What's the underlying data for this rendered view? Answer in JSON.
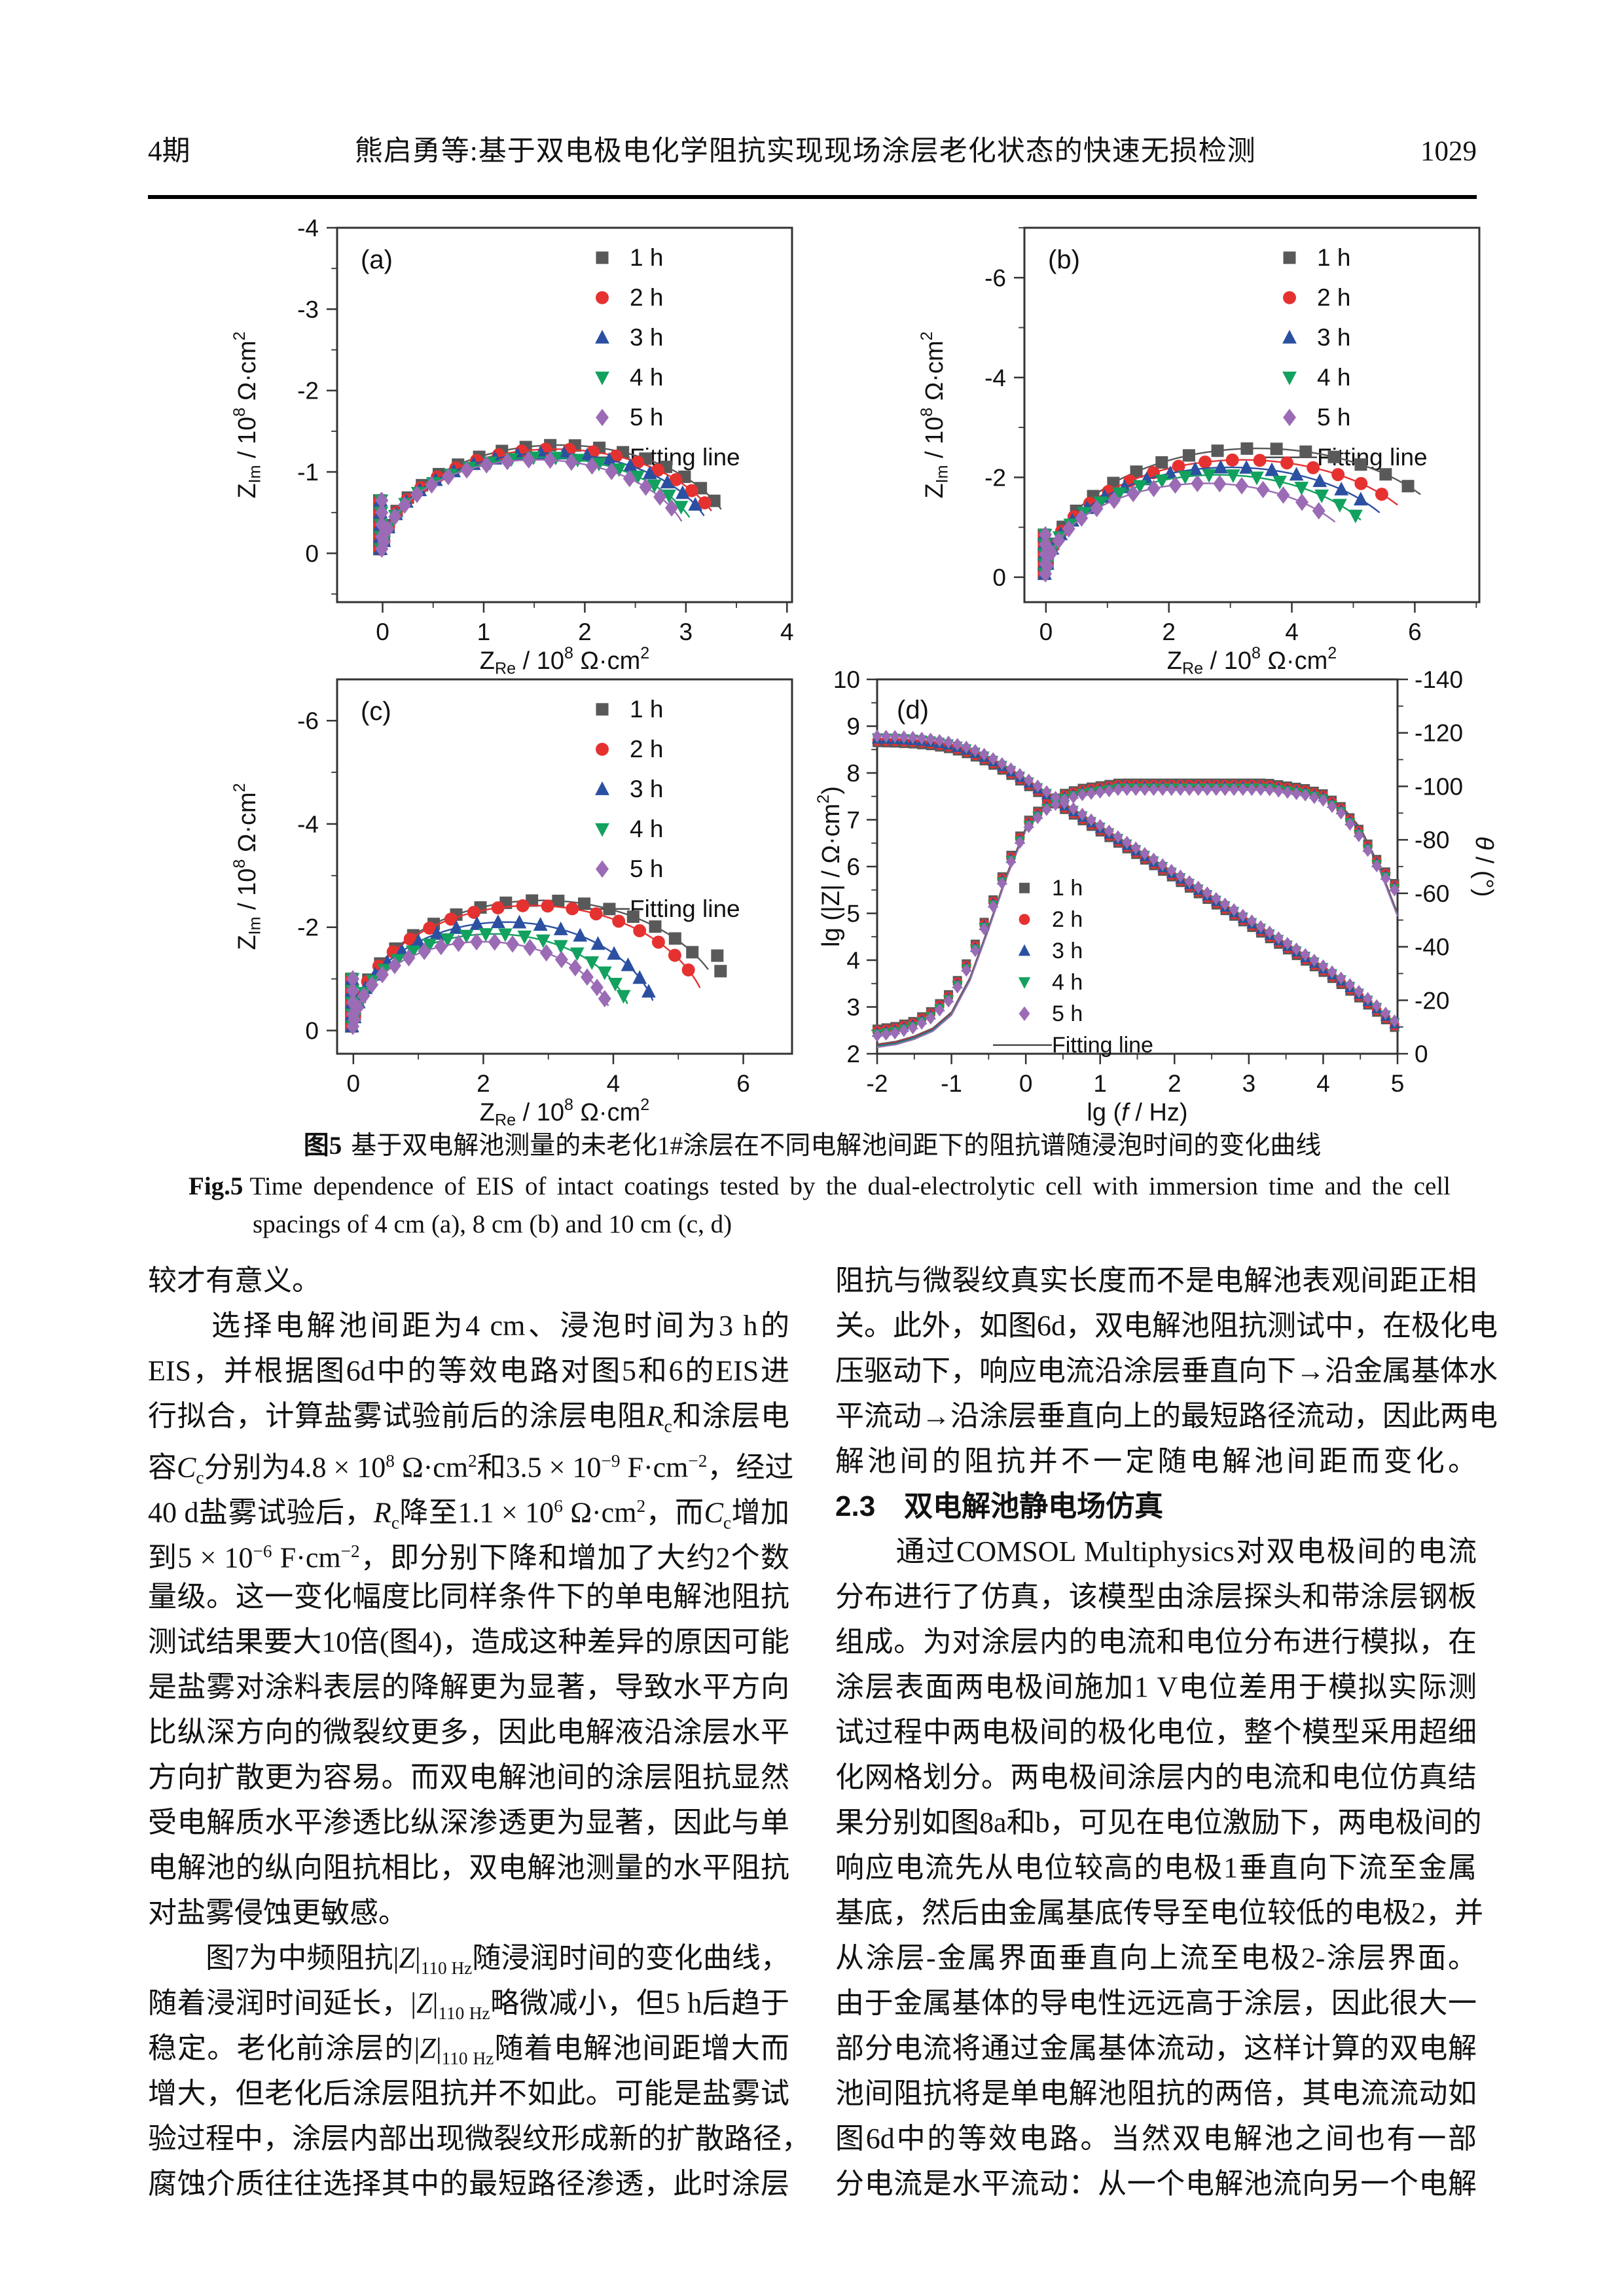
{
  "page": {
    "journal_issue": "4期",
    "running_title": "熊启勇等:基于双电极电化学阻抗实现现场涂层老化状态的快速无损检测",
    "page_number": "1029"
  },
  "colors": {
    "series": [
      "#595959",
      "#e53231",
      "#2b50a1",
      "#12a15e",
      "#9b6bb5"
    ],
    "fit_legend": "#4d4d4d",
    "frame": "#333333"
  },
  "figure": {
    "caption_cn_label": "图5",
    "caption_cn": "基于双电解池测量的未老化1#涂层在不同电解池间距下的阻抗谱随浸泡时间的变化曲线",
    "caption_en_label": "Fig.5",
    "caption_en_line1": "Time dependence of EIS of intact coatings tested by the dual-electrolytic cell with immersion time and the cell",
    "caption_en_line2": "spacings of 4 cm (a), 8 cm (b) and 10 cm (c, d)"
  },
  "chart_data": [
    {
      "type": "scatter",
      "subtype": "nyquist",
      "panel": "(a)",
      "cell_spacing": "4 cm",
      "xlabel": "Z_{Re} / 10^{8} Ω·cm^{2}",
      "ylabel": "Z_{Im} / 10^{8} Ω·cm^{2}",
      "xlim": [
        -0.45,
        4.05
      ],
      "ylim_top": -4.0,
      "ylim_bottom": 0.6,
      "xticks": [
        0,
        1,
        2,
        3,
        4
      ],
      "yticks": [
        -4,
        -3,
        -2,
        -1,
        0
      ],
      "xminor": 0.5,
      "yminor": 0.5,
      "legend": [
        "1 h",
        "2 h",
        "3 h",
        "4 h",
        "5 h",
        "Fitting line"
      ],
      "markers": [
        "square",
        "circle",
        "triangle-up",
        "triangle-down",
        "diamond"
      ],
      "series": [
        {
          "name": "1 h",
          "span": 3.5,
          "peak": 1.33,
          "theta_end": 26
        },
        {
          "name": "2 h",
          "span": 3.4,
          "peak": 1.28,
          "theta_end": 26
        },
        {
          "name": "3 h",
          "span": 3.3,
          "peak": 1.23,
          "theta_end": 25
        },
        {
          "name": "4 h",
          "span": 3.15,
          "peak": 1.18,
          "theta_end": 24
        },
        {
          "name": "5 h",
          "span": 3.05,
          "peak": 1.15,
          "theta_end": 23
        }
      ],
      "tail_depth": 0.65
    },
    {
      "type": "scatter",
      "subtype": "nyquist",
      "panel": "(b)",
      "cell_spacing": "8 cm",
      "xlabel": "Z_{Re} / 10^{8} Ω·cm^{2}",
      "ylabel": "Z_{Im} / 10^{8} Ω·cm^{2}",
      "xlim": [
        -0.35,
        7.05
      ],
      "ylim_top": -7.0,
      "ylim_bottom": 0.5,
      "xticks": [
        0,
        2,
        4,
        6
      ],
      "yticks": [
        -6,
        -4,
        -2,
        0
      ],
      "xminor": 1,
      "yminor": 1,
      "legend": [
        "1 h",
        "2 h",
        "3 h",
        "4 h",
        "5 h",
        "Fitting line"
      ],
      "markers": [
        "square",
        "circle",
        "triangle-up",
        "triangle-down",
        "diamond"
      ],
      "series": [
        {
          "name": "1 h",
          "span": 6.9,
          "peak": 2.58,
          "theta_end": 43
        },
        {
          "name": "2 h",
          "span": 6.4,
          "peak": 2.35,
          "theta_end": 40
        },
        {
          "name": "3 h",
          "span": 6.0,
          "peak": 2.2,
          "theta_end": 38
        },
        {
          "name": "4 h",
          "span": 5.6,
          "peak": 2.05,
          "theta_end": 37
        },
        {
          "name": "5 h",
          "span": 5.2,
          "peak": 1.88,
          "theta_end": 38
        }
      ],
      "tail_depth": 0.85
    },
    {
      "type": "scatter",
      "subtype": "nyquist",
      "panel": "(c)",
      "cell_spacing": "10 cm",
      "xlabel": "Z_{Re} / 10^{8} Ω·cm^{2}",
      "ylabel": "Z_{Im} / 10^{8} Ω·cm^{2}",
      "xlim": [
        -0.25,
        6.75
      ],
      "ylim_top": -6.8,
      "ylim_bottom": 0.45,
      "xticks": [
        0,
        2,
        4,
        6
      ],
      "yticks": [
        -6,
        -4,
        -2,
        0
      ],
      "xminor": 1,
      "yminor": 1,
      "legend": [
        "1 h",
        "2 h",
        "3 h",
        "4 h",
        "5 h",
        "Fitting line"
      ],
      "markers": [
        "square",
        "circle",
        "triangle-up",
        "triangle-down",
        "diamond"
      ],
      "series": [
        {
          "name": "1 h",
          "span": 5.8,
          "peak": 2.52,
          "theta_end": 30,
          "extra_points": [
            [
              5.6,
              -1.45
            ],
            [
              5.65,
              -1.15
            ]
          ]
        },
        {
          "name": "2 h",
          "span": 5.5,
          "peak": 2.42,
          "theta_end": 23
        },
        {
          "name": "3 h",
          "span": 4.7,
          "peak": 2.1,
          "theta_end": 18
        },
        {
          "name": "4 h",
          "span": 4.3,
          "peak": 1.87,
          "theta_end": 19
        },
        {
          "name": "5 h",
          "span": 4.0,
          "peak": 1.72,
          "theta_end": 19
        }
      ],
      "tail_depth": 1.0
    },
    {
      "type": "line",
      "subtype": "bode",
      "panel": "(d)",
      "cell_spacing": "10 cm",
      "xlabel": "lg (~{f} / Hz)",
      "ylabel_left": "lg (|Z| / Ω·cm^{2})",
      "ylabel_right": "~{θ} / (°)",
      "xlim": [
        -2,
        5
      ],
      "xticks": [
        -2,
        -1,
        0,
        1,
        2,
        3,
        4,
        5
      ],
      "xminor": 0.5,
      "ylim_left": [
        2,
        10
      ],
      "yticks_left": [
        2,
        3,
        4,
        5,
        6,
        7,
        8,
        9,
        10
      ],
      "yminor_left": 0.5,
      "ylim_right": [
        0,
        -140
      ],
      "yticks_right": [
        -140,
        -120,
        -100,
        -80,
        -60,
        -40,
        -20,
        0
      ],
      "yminor_right": 10,
      "legend": [
        "1 h",
        "2 h",
        "3 h",
        "4 h",
        "5 h",
        "Fitting line"
      ],
      "markers": [
        "square",
        "circle",
        "triangle-up",
        "triangle-down",
        "diamond"
      ],
      "x": [
        -2,
        -1.75,
        -1.5,
        -1.25,
        -1,
        -0.75,
        -0.5,
        -0.25,
        0,
        0.25,
        0.5,
        0.75,
        1,
        1.25,
        1.5,
        1.75,
        2,
        2.25,
        2.5,
        2.75,
        3,
        3.25,
        3.5,
        3.75,
        4,
        4.25,
        4.5,
        4.75,
        5
      ],
      "lgZ": [
        8.72,
        8.71,
        8.69,
        8.65,
        8.58,
        8.46,
        8.29,
        8.07,
        7.82,
        7.56,
        7.31,
        7.06,
        6.81,
        6.56,
        6.31,
        6.06,
        5.81,
        5.56,
        5.31,
        5.06,
        4.81,
        4.56,
        4.31,
        4.06,
        3.81,
        3.54,
        3.24,
        2.92,
        2.58
      ],
      "theta": [
        -8,
        -9,
        -11,
        -15,
        -22,
        -35,
        -52,
        -70,
        -85,
        -92,
        -96,
        -98,
        -99,
        -100,
        -100,
        -100,
        -100,
        -100,
        -100,
        -100,
        -100,
        -100,
        -99,
        -98,
        -96,
        -91,
        -82,
        -70,
        -61
      ],
      "theta_fit": [
        -3,
        -4,
        -6,
        -9,
        -15,
        -28,
        -47,
        -67,
        -84,
        -92,
        -96,
        -98,
        -99,
        -100,
        -100,
        -100,
        -100,
        -100,
        -100,
        -100,
        -100,
        -100,
        -99.5,
        -98.5,
        -96.5,
        -92,
        -84,
        -70,
        -52
      ],
      "note": "five immersion-time series (1–5 h) overlap almost completely"
    }
  ],
  "body": {
    "left_lines": [
      "较才有意义。",
      "　　选择电解池间距为4 cm、浸泡时间为3 h的",
      "EIS，并根据图6d中的等效电路对图5和6的EIS进",
      "行拟合，计算盐雾试验前后的涂层电阻<i>R</i><sub>c</sub>和涂层电",
      "容<i>C</i><sub>c</sub>分别为4.8 × 10<sup>8</sup> Ω·cm<sup>2</sup>和3.5 × 10<sup>−9</sup> F·cm<sup>−2</sup>，经过",
      "40 d盐雾试验后，<i>R</i><sub>c</sub>降至1.1 × 10<sup>6</sup> Ω·cm<sup>2</sup>，而<i>C</i><sub>c</sub>增加",
      "到5 × 10<sup>−6</sup> F·cm<sup>−2</sup>，即分别下降和增加了大约2个数",
      "量级。这一变化幅度比同样条件下的单电解池阻抗",
      "测试结果要大10倍(图4)，造成这种差异的原因可能",
      "是盐雾对涂料表层的降解更为显著，导致水平方向",
      "比纵深方向的微裂纹更多，因此电解液沿涂层水平",
      "方向扩散更为容易。而双电解池间的涂层阻抗显然",
      "受电解质水平渗透比纵深渗透更为显著，因此与单",
      "电解池的纵向阻抗相比，双电解池测量的水平阻抗",
      "对盐雾侵蚀更敏感。",
      "　　图7为中频阻抗|<i>Z</i>|<sub>110 Hz</sub>随浸润时间的变化曲线，",
      "随着浸润时间延长，|<i>Z</i>|<sub>110 Hz</sub>略微减小，但5 h后趋于",
      "稳定。老化前涂层的|<i>Z</i>|<sub>110 Hz</sub>随着电解池间距增大而",
      "增大，但老化后涂层阻抗并不如此。可能是盐雾试",
      "验过程中，涂层内部出现微裂纹形成新的扩散路径，",
      "腐蚀介质往往选择其中的最短路径渗透，此时涂层"
    ],
    "right_lines": [
      "阻抗与微裂纹真实长度而不是电解池表观间距正相",
      "关。此外，如图6d，双电解池阻抗测试中，在极化电",
      "压驱动下，响应电流沿涂层垂直向下→沿金属基体水",
      "平流动→沿涂层垂直向上的最短路径流动，因此两电",
      "解池间的阻抗并不一定随电解池间距而变化。",
      "##2.3　双电解池静电场仿真",
      "　　通过COMSOL Multiphysics对双电极间的电流",
      "分布进行了仿真，该模型由涂层探头和带涂层钢板",
      "组成。为对涂层内的电流和电位分布进行模拟，在",
      "涂层表面两电极间施加1 V电位差用于模拟实际测",
      "试过程中两电极间的极化电位，整个模型采用超细",
      "化网格划分。两电极间涂层内的电流和电位仿真结",
      "果分别如图8a和b，可见在电位激励下，两电极间的",
      "响应电流先从电位较高的电极1垂直向下流至金属",
      "基底，然后由金属基底传导至电位较低的电极2，并",
      "从涂层-金属界面垂直向上流至电极2-涂层界面。",
      "由于金属基体的导电性远远高于涂层，因此很大一",
      "部分电流将通过金属基体流动，这样计算的双电解",
      "池间阻抗将是单电解池阻抗的两倍，其电流流动如",
      "图6d中的等效电路。当然双电解池之间也有一部",
      "分电流是水平流动：从一个电解池流向另一个电解"
    ]
  }
}
